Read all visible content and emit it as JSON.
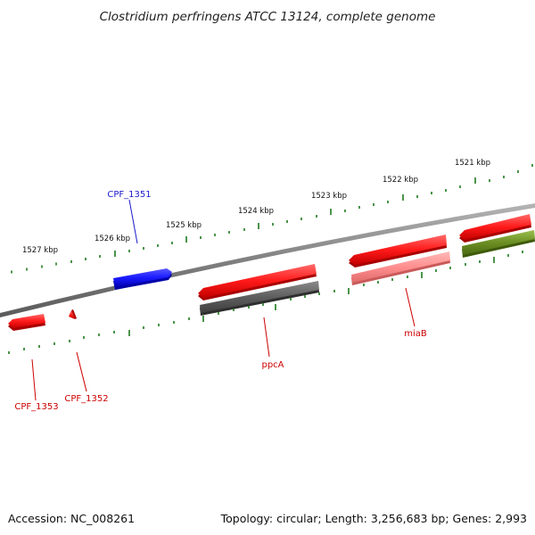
{
  "title": "Clostridium perfringens ATCC 13124, complete genome",
  "footer": {
    "accession": "Accession: NC_008261",
    "summary": "Topology: circular; Length: 3,256,683 bp; Genes: 2,993"
  },
  "kbp_labels": [
    "1527 kbp",
    "1526 kbp",
    "1525 kbp",
    "1524 kbp",
    "1523 kbp",
    "1522 kbp",
    "1521 kbp"
  ],
  "gene_labels": {
    "cpf_1351": "CPF_1351",
    "ppca": "ppcA",
    "miab": "miaB",
    "cpf_1352": "CPF_1352",
    "cpf_1353": "CPF_1353"
  },
  "colors": {
    "backbone": "#888888",
    "tick": "#1e7a1e",
    "forward_cds": "#ff1a1a",
    "reverse_cds": "#1a1aff",
    "rna_or_pseudo": "#666666",
    "faint_cds": "#ff9999",
    "other": "#6b8e23",
    "label_red": "#cc0000",
    "label_blue": "#1a1acc"
  }
}
